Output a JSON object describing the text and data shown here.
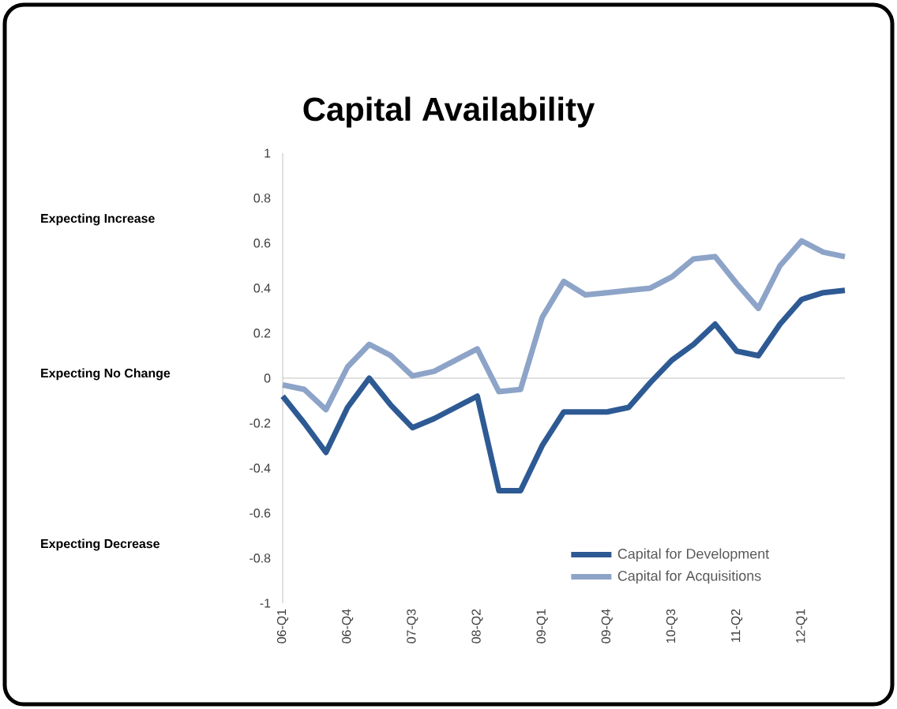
{
  "chart_data": {
    "type": "line",
    "title": "Capital Availability",
    "categories": [
      "06-Q1",
      null,
      null,
      "06-Q4",
      null,
      null,
      "07-Q3",
      null,
      null,
      "08-Q2",
      null,
      null,
      "09-Q1",
      null,
      null,
      "09-Q4",
      null,
      null,
      "10-Q3",
      null,
      null,
      "11-Q2",
      null,
      null,
      "12-Q1",
      null,
      null
    ],
    "series": [
      {
        "name": "Capital for Development",
        "color": "#2e5a94",
        "values": [
          -0.08,
          -0.2,
          -0.33,
          -0.13,
          0.0,
          -0.12,
          -0.22,
          -0.18,
          -0.13,
          -0.08,
          -0.5,
          -0.5,
          -0.3,
          -0.15,
          -0.15,
          -0.15,
          -0.13,
          -0.02,
          0.08,
          0.15,
          0.24,
          0.12,
          0.1,
          0.24,
          0.35,
          0.38,
          0.39
        ]
      },
      {
        "name": "Capital for Acquisitions",
        "color": "#8da4c8",
        "values": [
          -0.03,
          -0.05,
          -0.14,
          0.05,
          0.15,
          0.1,
          0.01,
          0.03,
          0.08,
          0.13,
          -0.06,
          -0.05,
          0.27,
          0.43,
          0.37,
          0.38,
          0.39,
          0.4,
          0.45,
          0.53,
          0.54,
          0.42,
          0.31,
          0.5,
          0.61,
          0.56,
          0.54
        ]
      }
    ],
    "ylim": [
      -1,
      1
    ],
    "yticks": [
      -1,
      -0.8,
      -0.6,
      -0.4,
      -0.2,
      0,
      0.2,
      0.4,
      0.6,
      0.8,
      1
    ],
    "annotations": [
      "Expecting Increase",
      "Expecting No Change",
      "Expecting Decrease"
    ],
    "legend": "bottom right",
    "marker": "none",
    "line_style": "solid"
  }
}
